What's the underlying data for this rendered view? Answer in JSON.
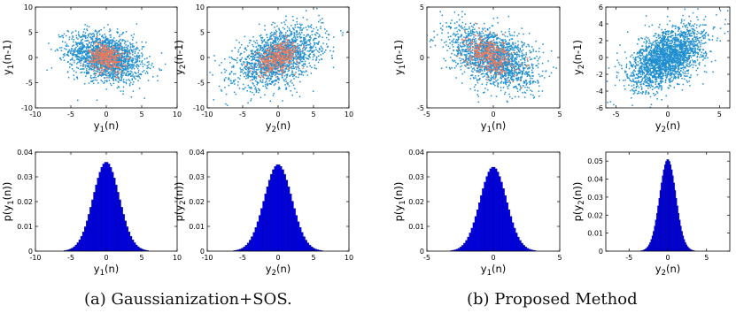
{
  "colors": {
    "scatter_main": "#1f8fd0",
    "scatter_sub": "#ee7a5a",
    "histogram": "#0000e6",
    "axes": "#000000"
  },
  "captions": [
    "(a) Gaussianization+SOS.",
    "(b) Proposed Method"
  ],
  "chart_data": [
    {
      "type": "scatter",
      "panel": "a-1",
      "xlabel": "y_1(n)",
      "ylabel": "y_1(n-1)",
      "xlim": [
        -10,
        10
      ],
      "ylim": [
        -10,
        10
      ],
      "xticks": [
        -10,
        -5,
        0,
        5,
        10
      ],
      "yticks": [
        -10,
        -5,
        0,
        5,
        10
      ],
      "series": [
        {
          "color": "#1f8fd0",
          "distribution": "gaussian",
          "n": 1800,
          "mean": [
            0,
            0
          ],
          "std": [
            2.6,
            2.4
          ],
          "correlation": -0.3
        },
        {
          "color": "#ee7a5a",
          "distribution": "gaussian",
          "n": 380,
          "mean": [
            0,
            0
          ],
          "std": [
            1.2,
            1.4
          ],
          "correlation": -0.2
        }
      ]
    },
    {
      "type": "scatter",
      "panel": "a-2",
      "xlabel": "y_2(n)",
      "ylabel": "y_2(n-1)",
      "xlim": [
        -10,
        10
      ],
      "ylim": [
        -10,
        10
      ],
      "xticks": [
        -10,
        -5,
        0,
        5,
        10
      ],
      "yticks": [
        -10,
        -5,
        0,
        5,
        10
      ],
      "series": [
        {
          "color": "#1f8fd0",
          "distribution": "gaussian",
          "n": 1800,
          "mean": [
            0,
            0
          ],
          "std": [
            3.0,
            2.9
          ],
          "correlation": 0.45
        },
        {
          "color": "#ee7a5a",
          "distribution": "gaussian",
          "n": 380,
          "mean": [
            0,
            0
          ],
          "std": [
            1.5,
            1.6
          ],
          "correlation": 0.4
        }
      ]
    },
    {
      "type": "scatter",
      "panel": "b-1",
      "xlabel": "y_1(n)",
      "ylabel": "y_1(n-1)",
      "xlim": [
        -5,
        5
      ],
      "ylim": [
        -5,
        5
      ],
      "xticks": [
        -5,
        0,
        5
      ],
      "yticks": [
        -5,
        0,
        5
      ],
      "series": [
        {
          "color": "#1f8fd0",
          "distribution": "gaussian",
          "n": 1800,
          "mean": [
            0,
            0
          ],
          "std": [
            1.6,
            1.55
          ],
          "correlation": -0.45
        },
        {
          "color": "#ee7a5a",
          "distribution": "gaussian",
          "n": 380,
          "mean": [
            -0.3,
            0.2
          ],
          "std": [
            0.9,
            0.9
          ],
          "correlation": -0.3
        }
      ]
    },
    {
      "type": "scatter",
      "panel": "b-2",
      "xlabel": "y_2(n)",
      "ylabel": "y_2(n-1)",
      "xlim": [
        -6,
        6
      ],
      "ylim": [
        -6,
        6
      ],
      "xticks": [
        -5,
        0,
        5
      ],
      "yticks": [
        -6,
        -4,
        -2,
        0,
        2,
        4,
        6
      ],
      "series": [
        {
          "color": "#1f8fd0",
          "distribution": "gaussian",
          "n": 2200,
          "mean": [
            0,
            0
          ],
          "std": [
            1.8,
            1.8
          ],
          "correlation": 0.5
        }
      ]
    },
    {
      "type": "bar",
      "panel": "a-3",
      "xlabel": "y_1(n)",
      "ylabel": "p(y_1(n))",
      "xlim": [
        -10,
        10
      ],
      "ylim": [
        0,
        0.04
      ],
      "xticks": [
        -10,
        -5,
        0,
        5,
        10
      ],
      "yticks": [
        0,
        0.01,
        0.02,
        0.03,
        0.04
      ],
      "distribution": "gaussian",
      "mean": 0,
      "std": 1.85,
      "peak": 0.036,
      "bins": 60,
      "color": "#0000e6"
    },
    {
      "type": "bar",
      "panel": "a-4",
      "xlabel": "y_2(n)",
      "ylabel": "p(y_2(n))",
      "xlim": [
        -10,
        10
      ],
      "ylim": [
        0,
        0.04
      ],
      "xticks": [
        -10,
        -5,
        0,
        5,
        10
      ],
      "yticks": [
        0,
        0.01,
        0.02,
        0.03,
        0.04
      ],
      "distribution": "gaussian",
      "mean": 0,
      "std": 1.95,
      "peak": 0.035,
      "bins": 60,
      "color": "#0000e6"
    },
    {
      "type": "bar",
      "panel": "b-3",
      "xlabel": "y_1(n)",
      "ylabel": "p(y_1(n))",
      "xlim": [
        -5,
        5
      ],
      "ylim": [
        0,
        0.04
      ],
      "xticks": [
        -5,
        0,
        5
      ],
      "yticks": [
        0,
        0.01,
        0.02,
        0.03,
        0.04
      ],
      "distribution": "gaussian",
      "mean": 0,
      "std": 1.0,
      "peak": 0.034,
      "bins": 60,
      "color": "#0000e6"
    },
    {
      "type": "bar",
      "panel": "b-4",
      "xlabel": "y_2(n)",
      "ylabel": "p(y_2(n))",
      "xlim": [
        -8,
        8
      ],
      "ylim": [
        0,
        0.055
      ],
      "xticks": [
        -5,
        0,
        5
      ],
      "yticks": [
        0,
        0.01,
        0.02,
        0.03,
        0.04,
        0.05
      ],
      "distribution": "gaussian",
      "mean": 0,
      "std": 1.05,
      "peak": 0.051,
      "bins": 60,
      "color": "#0000e6"
    }
  ]
}
